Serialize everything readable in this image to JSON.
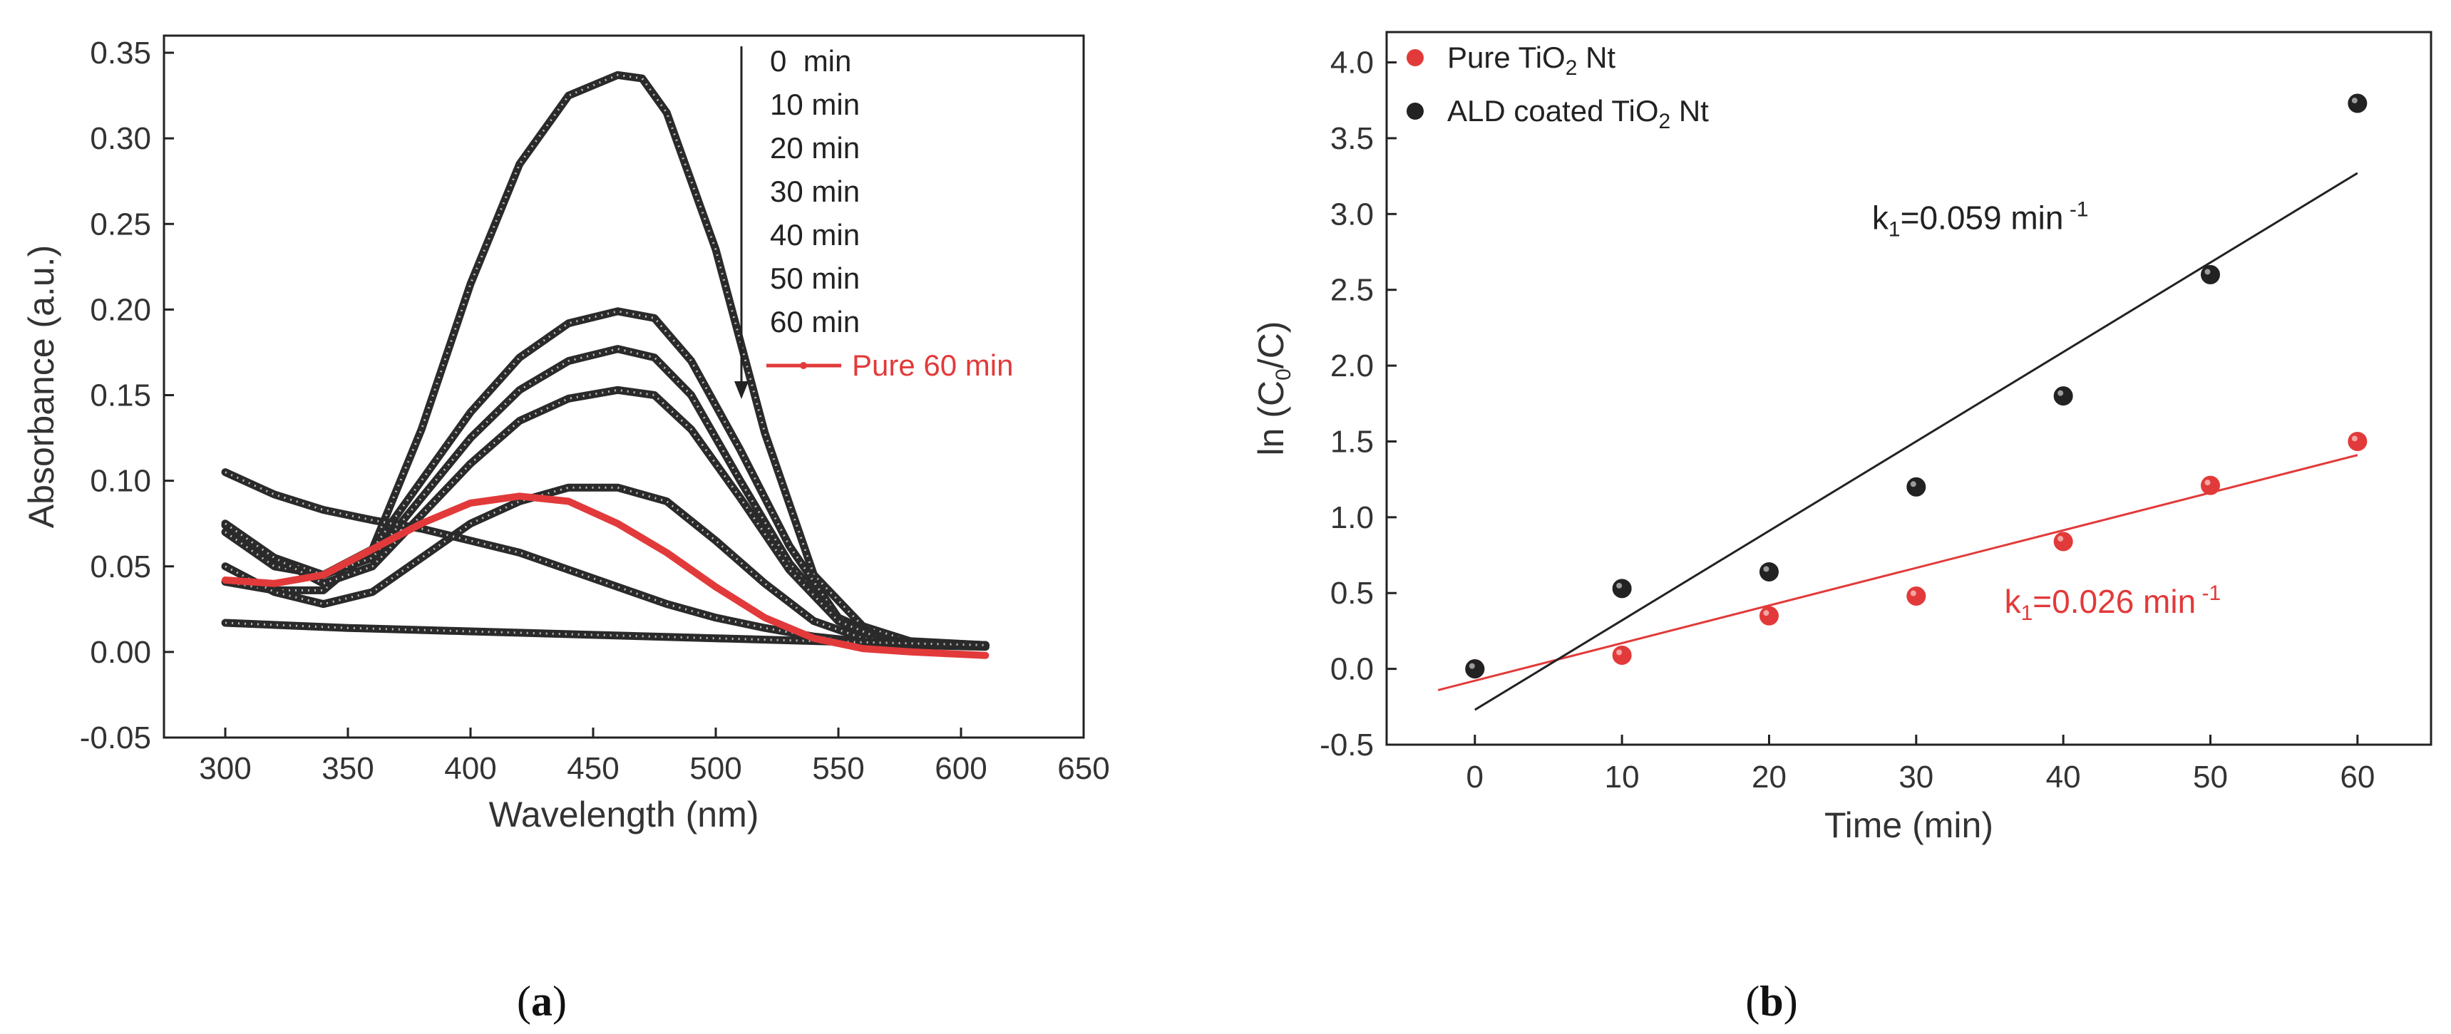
{
  "panels": [
    {
      "tag_open": "(",
      "tag_letter": "a",
      "tag_close": ")"
    },
    {
      "tag_open": "(",
      "tag_letter": "b",
      "tag_close": ")"
    }
  ],
  "chart_data": [
    {
      "type": "line",
      "panel": "a",
      "xlabel": "Wavelength (nm)",
      "ylabel": "Absorbance (a.u.)",
      "xlim": [
        275,
        650
      ],
      "ylim": [
        -0.05,
        0.36
      ],
      "xticks": [
        300,
        350,
        400,
        450,
        500,
        550,
        600,
        650
      ],
      "yticks": [
        -0.05,
        0.0,
        0.05,
        0.1,
        0.15,
        0.2,
        0.25,
        0.3,
        0.35
      ],
      "ytick_labels": [
        "-0.05",
        "0.00",
        "0.05",
        "0.10",
        "0.15",
        "0.20",
        "0.25",
        "0.30",
        "0.35"
      ],
      "legend": {
        "placement": "top-right",
        "arrow": "downward"
      },
      "colors": {
        "series": "#2a2a2a",
        "highlight": "#e23a3a"
      },
      "series": [
        {
          "name": "0  min",
          "color": "#2a2a2a",
          "points": [
            [
              300,
              0.041
            ],
            [
              320,
              0.036
            ],
            [
              340,
              0.036
            ],
            [
              360,
              0.06
            ],
            [
              380,
              0.13
            ],
            [
              400,
              0.215
            ],
            [
              420,
              0.285
            ],
            [
              440,
              0.325
            ],
            [
              460,
              0.337
            ],
            [
              470,
              0.335
            ],
            [
              480,
              0.315
            ],
            [
              500,
              0.235
            ],
            [
              520,
              0.128
            ],
            [
              540,
              0.045
            ],
            [
              560,
              0.015
            ],
            [
              580,
              0.006
            ],
            [
              610,
              0.004
            ]
          ]
        },
        {
          "name": "10 min",
          "color": "#2a2a2a",
          "points": [
            [
              300,
              0.07
            ],
            [
              320,
              0.05
            ],
            [
              340,
              0.045
            ],
            [
              360,
              0.06
            ],
            [
              380,
              0.1
            ],
            [
              400,
              0.14
            ],
            [
              420,
              0.172
            ],
            [
              440,
              0.192
            ],
            [
              460,
              0.199
            ],
            [
              475,
              0.195
            ],
            [
              490,
              0.17
            ],
            [
              510,
              0.118
            ],
            [
              530,
              0.062
            ],
            [
              550,
              0.02
            ],
            [
              570,
              0.007
            ],
            [
              610,
              0.004
            ]
          ]
        },
        {
          "name": "20 min",
          "color": "#2a2a2a",
          "points": [
            [
              300,
              0.074
            ],
            [
              320,
              0.055
            ],
            [
              340,
              0.045
            ],
            [
              360,
              0.055
            ],
            [
              380,
              0.09
            ],
            [
              400,
              0.125
            ],
            [
              420,
              0.153
            ],
            [
              440,
              0.17
            ],
            [
              460,
              0.177
            ],
            [
              475,
              0.172
            ],
            [
              490,
              0.15
            ],
            [
              510,
              0.1
            ],
            [
              530,
              0.052
            ],
            [
              550,
              0.018
            ],
            [
              570,
              0.006
            ],
            [
              610,
              0.004
            ]
          ]
        },
        {
          "name": "30 min",
          "color": "#2a2a2a",
          "points": [
            [
              300,
              0.075
            ],
            [
              320,
              0.055
            ],
            [
              340,
              0.04
            ],
            [
              360,
              0.05
            ],
            [
              380,
              0.08
            ],
            [
              400,
              0.11
            ],
            [
              420,
              0.135
            ],
            [
              440,
              0.148
            ],
            [
              460,
              0.153
            ],
            [
              475,
              0.15
            ],
            [
              490,
              0.13
            ],
            [
              510,
              0.09
            ],
            [
              530,
              0.048
            ],
            [
              550,
              0.018
            ],
            [
              570,
              0.006
            ],
            [
              610,
              0.004
            ]
          ]
        },
        {
          "name": "40 min",
          "color": "#2a2a2a",
          "points": [
            [
              300,
              0.05
            ],
            [
              320,
              0.035
            ],
            [
              340,
              0.028
            ],
            [
              360,
              0.035
            ],
            [
              380,
              0.055
            ],
            [
              400,
              0.075
            ],
            [
              420,
              0.088
            ],
            [
              440,
              0.096
            ],
            [
              460,
              0.096
            ],
            [
              480,
              0.088
            ],
            [
              500,
              0.065
            ],
            [
              520,
              0.04
            ],
            [
              540,
              0.018
            ],
            [
              560,
              0.008
            ],
            [
              580,
              0.005
            ],
            [
              610,
              0.004
            ]
          ]
        },
        {
          "name": "50 min",
          "color": "#2a2a2a",
          "points": [
            [
              300,
              0.105
            ],
            [
              320,
              0.092
            ],
            [
              340,
              0.083
            ],
            [
              360,
              0.077
            ],
            [
              380,
              0.072
            ],
            [
              400,
              0.065
            ],
            [
              420,
              0.058
            ],
            [
              440,
              0.048
            ],
            [
              460,
              0.038
            ],
            [
              480,
              0.028
            ],
            [
              500,
              0.02
            ],
            [
              520,
              0.014
            ],
            [
              540,
              0.009
            ],
            [
              560,
              0.006
            ],
            [
              580,
              0.004
            ],
            [
              610,
              0.003
            ]
          ]
        },
        {
          "name": "60 min",
          "color": "#2a2a2a",
          "points": [
            [
              300,
              0.017
            ],
            [
              350,
              0.014
            ],
            [
              400,
              0.012
            ],
            [
              450,
              0.01
            ],
            [
              500,
              0.008
            ],
            [
              550,
              0.006
            ],
            [
              610,
              0.004
            ]
          ]
        },
        {
          "name": "Pure 60 min",
          "color": "#e23a3a",
          "points": [
            [
              300,
              0.042
            ],
            [
              320,
              0.04
            ],
            [
              340,
              0.045
            ],
            [
              360,
              0.06
            ],
            [
              380,
              0.075
            ],
            [
              400,
              0.087
            ],
            [
              420,
              0.091
            ],
            [
              440,
              0.088
            ],
            [
              460,
              0.075
            ],
            [
              480,
              0.058
            ],
            [
              500,
              0.038
            ],
            [
              520,
              0.02
            ],
            [
              540,
              0.008
            ],
            [
              560,
              0.002
            ],
            [
              580,
              0.0
            ],
            [
              610,
              -0.002
            ]
          ]
        }
      ]
    },
    {
      "type": "scatter",
      "panel": "b",
      "xlabel": "Time (min)",
      "ylabel_prefix": "ln (C",
      "ylabel_sub": "0",
      "ylabel_suffix": "/C)",
      "xlim": [
        -6,
        65
      ],
      "ylim": [
        -0.5,
        4.2
      ],
      "xticks": [
        0,
        10,
        20,
        30,
        40,
        50,
        60
      ],
      "yticks": [
        -0.5,
        0.0,
        0.5,
        1.0,
        1.5,
        2.0,
        2.5,
        3.0,
        3.5,
        4.0
      ],
      "ytick_labels": [
        "-0.5",
        "0.0",
        "0.5",
        "1.0",
        "1.5",
        "2.0",
        "2.5",
        "3.0",
        "3.5",
        "4.0"
      ],
      "legend": {
        "placement": "top-left"
      },
      "series": [
        {
          "name_prefix": "Pure TiO",
          "name_sub": "2",
          "name_suffix": " Nt",
          "color": "#e23a3a",
          "x": [
            0,
            10,
            20,
            30,
            40,
            50,
            60
          ],
          "y": [
            0.0,
            0.09,
            0.35,
            0.48,
            0.84,
            1.21,
            1.5
          ],
          "fit": {
            "x": [
              -2.5,
              60
            ],
            "y": [
              -0.14,
              1.41
            ]
          },
          "annotation": {
            "k": "k",
            "k_sub": "1",
            "text": "=0.026 min",
            "sup": " -1",
            "at": [
              36,
              0.37
            ]
          }
        },
        {
          "name_prefix": "ALD coated TiO",
          "name_sub": "2",
          "name_suffix": " Nt",
          "color": "#222222",
          "x": [
            0,
            10,
            20,
            30,
            40,
            50,
            60
          ],
          "y": [
            0.0,
            0.53,
            0.64,
            1.2,
            1.8,
            2.6,
            3.73
          ],
          "fit": {
            "x": [
              0,
              60
            ],
            "y": [
              -0.27,
              3.27
            ]
          },
          "annotation": {
            "k": "k",
            "k_sub": "1",
            "text": "=0.059 min",
            "sup": " -1",
            "at": [
              27,
              2.9
            ]
          }
        }
      ]
    }
  ]
}
